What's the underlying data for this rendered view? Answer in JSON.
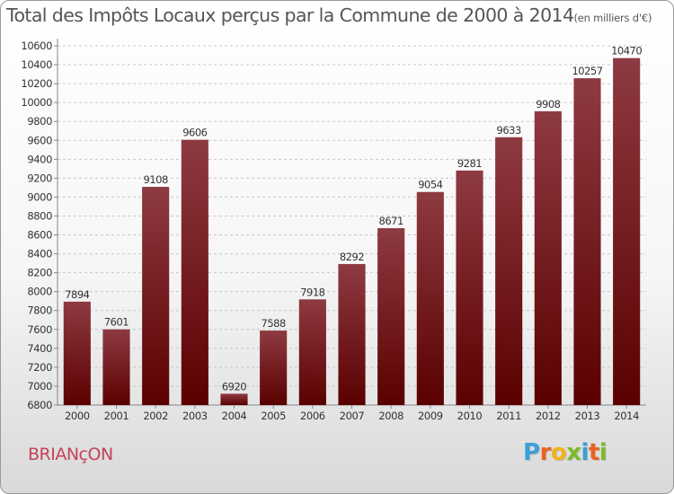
{
  "title": "Total des Impôts Locaux perçus par la Commune de 2000 à 2014",
  "unit": "(en milliers d'€)",
  "commune": "BRIANçON",
  "brand": {
    "letters": [
      "P",
      "r",
      "o",
      "x",
      "i",
      "t",
      "i"
    ],
    "colors": [
      "#3aa0d8",
      "#e8631f",
      "#f3b21b",
      "#7bbb2a",
      "#3aa0d8",
      "#e8631f",
      "#7bbb2a"
    ]
  },
  "colors": {
    "bar_top": "#8e3a42",
    "bar_bottom": "#5a0000",
    "grid": "#c8c8c8",
    "axis_text": "#333333"
  },
  "chart_data": {
    "type": "bar",
    "categories": [
      "2000",
      "2001",
      "2002",
      "2003",
      "2004",
      "2005",
      "2006",
      "2007",
      "2008",
      "2009",
      "2010",
      "2011",
      "2012",
      "2013",
      "2014"
    ],
    "values": [
      7894,
      7601,
      9108,
      9606,
      6920,
      7588,
      7918,
      8292,
      8671,
      9054,
      9281,
      9633,
      9908,
      10257,
      10470
    ],
    "ylim": [
      6800,
      10600
    ],
    "yticks": [
      6800,
      7000,
      7200,
      7400,
      7600,
      7800,
      8000,
      8200,
      8400,
      8600,
      8800,
      9000,
      9200,
      9400,
      9600,
      9800,
      10000,
      10200,
      10400,
      10600
    ],
    "grid": true,
    "data_labels": true
  }
}
